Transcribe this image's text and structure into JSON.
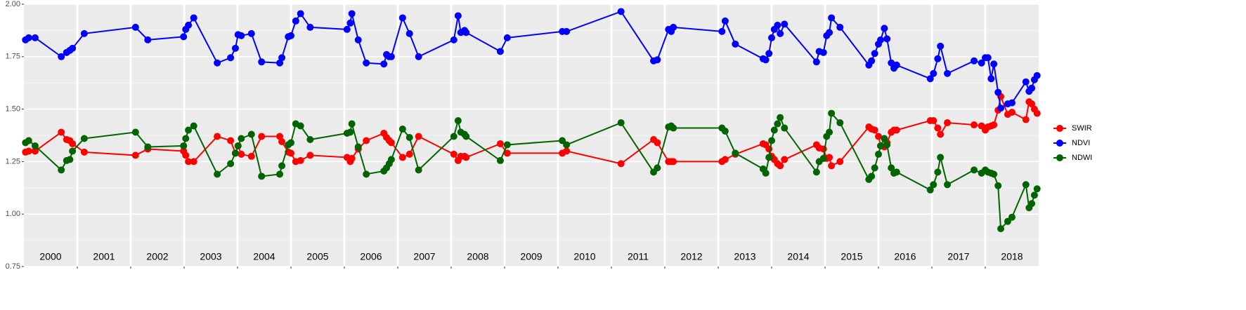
{
  "chart_data": {
    "type": "line",
    "x": [
      2000.03,
      2000.09,
      2000.21,
      2000.7,
      2000.8,
      2000.86,
      2000.91,
      2001.13,
      2002.09,
      2002.32,
      2002.99,
      2003.03,
      2003.08,
      2003.18,
      2003.62,
      2003.87,
      2003.96,
      2004.01,
      2004.07,
      2004.26,
      2004.45,
      2004.79,
      2004.83,
      2004.95,
      2005.0,
      2005.09,
      2005.18,
      2005.36,
      2006.05,
      2006.11,
      2006.14,
      2006.26,
      2006.41,
      2006.74,
      2006.79,
      2006.84,
      2006.88,
      2007.09,
      2007.22,
      2007.39,
      2008.05,
      2008.13,
      2008.18,
      2008.25,
      2008.28,
      2008.92,
      2009.05,
      2010.08,
      2010.16,
      2011.18,
      2011.79,
      2011.86,
      2012.07,
      2012.12,
      2012.16,
      2013.07,
      2013.13,
      2013.32,
      2013.84,
      2013.89,
      2013.95,
      2014.0,
      2014.05,
      2014.11,
      2014.16,
      2014.24,
      2014.84,
      2014.89,
      2014.97,
      2015.03,
      2015.08,
      2015.12,
      2015.28,
      2015.82,
      2015.87,
      2015.93,
      2016.0,
      2016.04,
      2016.11,
      2016.16,
      2016.24,
      2016.29,
      2016.34,
      2016.97,
      2017.03,
      2017.11,
      2017.16,
      2017.29,
      2017.79,
      2017.93,
      2018.0,
      2018.05,
      2018.11,
      2018.16,
      2018.24,
      2018.29,
      2018.42,
      2018.5,
      2018.76,
      2018.82,
      2018.87,
      2018.92,
      2018.97
    ],
    "series": [
      {
        "name": "SWIR",
        "color": "#ff0000",
        "values": [
          1.295,
          1.3,
          1.3,
          1.39,
          1.355,
          1.35,
          1.335,
          1.295,
          1.28,
          1.31,
          1.3,
          1.28,
          1.25,
          1.25,
          1.37,
          1.35,
          1.29,
          1.325,
          1.285,
          1.275,
          1.37,
          1.37,
          1.345,
          1.295,
          1.29,
          1.25,
          1.255,
          1.28,
          1.27,
          1.25,
          1.265,
          1.31,
          1.35,
          1.385,
          1.365,
          1.35,
          1.34,
          1.27,
          1.285,
          1.37,
          1.285,
          1.255,
          1.275,
          1.275,
          1.27,
          1.335,
          1.29,
          1.29,
          1.3,
          1.24,
          1.355,
          1.34,
          1.25,
          1.25,
          1.25,
          1.25,
          1.26,
          1.285,
          1.335,
          1.33,
          1.31,
          1.275,
          1.26,
          1.24,
          1.23,
          1.26,
          1.33,
          1.315,
          1.31,
          1.265,
          1.27,
          1.23,
          1.25,
          1.415,
          1.405,
          1.4,
          1.37,
          1.325,
          1.32,
          1.34,
          1.39,
          1.4,
          1.4,
          1.445,
          1.445,
          1.41,
          1.38,
          1.435,
          1.425,
          1.42,
          1.4,
          1.415,
          1.42,
          1.425,
          1.495,
          1.56,
          1.475,
          1.485,
          1.45,
          1.535,
          1.525,
          1.5,
          1.48
        ]
      },
      {
        "name": "NDVI",
        "color": "#0000ff",
        "values": [
          1.83,
          1.84,
          1.84,
          1.75,
          1.77,
          1.78,
          1.79,
          1.86,
          1.89,
          1.83,
          1.845,
          1.88,
          1.9,
          1.935,
          1.72,
          1.745,
          1.79,
          1.855,
          1.85,
          1.86,
          1.725,
          1.72,
          1.745,
          1.845,
          1.85,
          1.92,
          1.955,
          1.89,
          1.88,
          1.91,
          1.955,
          1.83,
          1.72,
          1.715,
          1.76,
          1.75,
          1.75,
          1.935,
          1.86,
          1.75,
          1.83,
          1.945,
          1.865,
          1.875,
          1.865,
          1.775,
          1.84,
          1.87,
          1.87,
          1.965,
          1.73,
          1.735,
          1.88,
          1.87,
          1.89,
          1.87,
          1.92,
          1.81,
          1.74,
          1.735,
          1.765,
          1.84,
          1.88,
          1.9,
          1.86,
          1.905,
          1.725,
          1.775,
          1.77,
          1.85,
          1.865,
          1.935,
          1.89,
          1.71,
          1.73,
          1.765,
          1.81,
          1.83,
          1.885,
          1.835,
          1.72,
          1.695,
          1.71,
          1.645,
          1.67,
          1.74,
          1.8,
          1.67,
          1.73,
          1.72,
          1.745,
          1.745,
          1.645,
          1.715,
          1.58,
          1.505,
          1.525,
          1.53,
          1.63,
          1.585,
          1.6,
          1.64,
          1.66
        ]
      },
      {
        "name": "NDWI",
        "color": "#006400",
        "values": [
          1.34,
          1.35,
          1.325,
          1.21,
          1.255,
          1.26,
          1.3,
          1.36,
          1.39,
          1.32,
          1.325,
          1.36,
          1.4,
          1.42,
          1.19,
          1.24,
          1.29,
          1.325,
          1.36,
          1.38,
          1.18,
          1.19,
          1.23,
          1.33,
          1.34,
          1.43,
          1.42,
          1.355,
          1.385,
          1.39,
          1.43,
          1.32,
          1.19,
          1.205,
          1.22,
          1.24,
          1.26,
          1.405,
          1.365,
          1.21,
          1.37,
          1.445,
          1.39,
          1.38,
          1.37,
          1.255,
          1.33,
          1.35,
          1.33,
          1.435,
          1.2,
          1.22,
          1.415,
          1.42,
          1.41,
          1.41,
          1.395,
          1.29,
          1.215,
          1.195,
          1.27,
          1.35,
          1.4,
          1.43,
          1.46,
          1.41,
          1.2,
          1.25,
          1.265,
          1.37,
          1.39,
          1.48,
          1.435,
          1.165,
          1.18,
          1.22,
          1.285,
          1.325,
          1.36,
          1.33,
          1.22,
          1.195,
          1.2,
          1.115,
          1.14,
          1.2,
          1.27,
          1.14,
          1.21,
          1.195,
          1.21,
          1.2,
          1.195,
          1.19,
          1.135,
          0.93,
          0.965,
          0.985,
          1.14,
          1.03,
          1.05,
          1.09,
          1.12
        ]
      }
    ],
    "year_labels": [
      2000,
      2001,
      2002,
      2003,
      2004,
      2005,
      2006,
      2007,
      2008,
      2009,
      2010,
      2011,
      2012,
      2013,
      2014,
      2015,
      2016,
      2017,
      2018
    ],
    "xlim": [
      2000,
      2019
    ],
    "xticks": [
      2001,
      2002,
      2003,
      2004,
      2005,
      2006,
      2007,
      2008,
      2009,
      2010,
      2011,
      2012,
      2013,
      2014,
      2015,
      2016,
      2017,
      2018
    ],
    "ylim": [
      0.75,
      2.0
    ],
    "yticks": [
      {
        "value": 0.75,
        "label": "0.75"
      },
      {
        "value": 1.0,
        "label": "1.00"
      },
      {
        "value": 1.25,
        "label": "1.25"
      },
      {
        "value": 1.5,
        "label": "1.50"
      },
      {
        "value": 1.75,
        "label": "1.75"
      },
      {
        "value": 2.0,
        "label": "2.00"
      }
    ],
    "grid": true,
    "legend": "right"
  }
}
